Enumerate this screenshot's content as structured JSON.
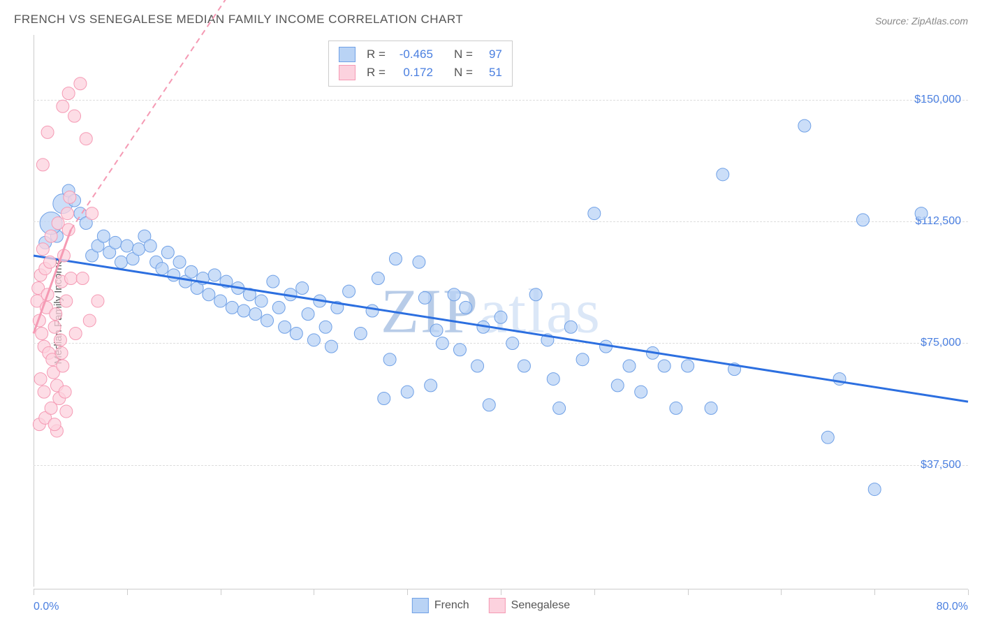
{
  "title": "FRENCH VS SENEGALESE MEDIAN FAMILY INCOME CORRELATION CHART",
  "source": "Source: ZipAtlas.com",
  "watermark_a": "ZIP",
  "watermark_b": "atlas",
  "chart": {
    "type": "scatter",
    "xlim": [
      0,
      80
    ],
    "ylim": [
      0,
      170000
    ],
    "x_start_label": "0.0%",
    "x_end_label": "80.0%",
    "x_tick_positions": [
      0,
      8,
      16,
      24,
      32,
      40,
      48,
      56,
      64,
      72,
      80
    ],
    "y_gridlines": [
      37500,
      75000,
      112500,
      150000
    ],
    "y_tick_labels": [
      "$37,500",
      "$75,000",
      "$112,500",
      "$150,000"
    ],
    "y_axis_title": "Median Family Income",
    "background_color": "#ffffff",
    "grid_color": "#dddddd",
    "axis_color": "#cccccc",
    "tick_label_color": "#4a7fe0",
    "series": [
      {
        "name": "French",
        "label": "French",
        "R": "-0.465",
        "N": "97",
        "point_fill": "#b9d3f5",
        "point_stroke": "#6fa0e6",
        "point_opacity": 0.75,
        "point_radius": 9,
        "trend_color": "#2c6fe0",
        "trend_from": [
          0,
          102000
        ],
        "trend_to": [
          80,
          57000
        ],
        "trend_dash": "none",
        "points": [
          [
            1,
            106000
          ],
          [
            2,
            108000
          ],
          [
            1.5,
            112000,
            16
          ],
          [
            2.5,
            118000,
            14
          ],
          [
            3,
            122000
          ],
          [
            3.5,
            119000
          ],
          [
            4,
            115000
          ],
          [
            4.5,
            112000
          ],
          [
            5,
            102000
          ],
          [
            5.5,
            105000
          ],
          [
            6,
            108000
          ],
          [
            6.5,
            103000
          ],
          [
            7,
            106000
          ],
          [
            7.5,
            100000
          ],
          [
            8,
            105000
          ],
          [
            8.5,
            101000
          ],
          [
            9,
            104000
          ],
          [
            9.5,
            108000
          ],
          [
            10,
            105000
          ],
          [
            10.5,
            100000
          ],
          [
            11,
            98000
          ],
          [
            11.5,
            103000
          ],
          [
            12,
            96000
          ],
          [
            12.5,
            100000
          ],
          [
            13,
            94000
          ],
          [
            13.5,
            97000
          ],
          [
            14,
            92000
          ],
          [
            14.5,
            95000
          ],
          [
            15,
            90000
          ],
          [
            15.5,
            96000
          ],
          [
            16,
            88000
          ],
          [
            16.5,
            94000
          ],
          [
            17,
            86000
          ],
          [
            17.5,
            92000
          ],
          [
            18,
            85000
          ],
          [
            18.5,
            90000
          ],
          [
            19,
            84000
          ],
          [
            19.5,
            88000
          ],
          [
            20,
            82000
          ],
          [
            20.5,
            94000
          ],
          [
            21,
            86000
          ],
          [
            21.5,
            80000
          ],
          [
            22,
            90000
          ],
          [
            22.5,
            78000
          ],
          [
            23,
            92000
          ],
          [
            23.5,
            84000
          ],
          [
            24,
            76000
          ],
          [
            24.5,
            88000
          ],
          [
            25,
            80000
          ],
          [
            25.5,
            74000
          ],
          [
            26,
            86000
          ],
          [
            27,
            91000
          ],
          [
            28,
            78000
          ],
          [
            29,
            85000
          ],
          [
            29.5,
            95000
          ],
          [
            30,
            58000
          ],
          [
            30.5,
            70000
          ],
          [
            31,
            101000
          ],
          [
            32,
            60000
          ],
          [
            33,
            100000
          ],
          [
            33.5,
            89000
          ],
          [
            34,
            62000
          ],
          [
            34.5,
            79000
          ],
          [
            35,
            75000
          ],
          [
            36,
            90000
          ],
          [
            36.5,
            73000
          ],
          [
            37,
            86000
          ],
          [
            38,
            68000
          ],
          [
            38.5,
            80000
          ],
          [
            39,
            56000
          ],
          [
            40,
            83000
          ],
          [
            41,
            75000
          ],
          [
            42,
            68000
          ],
          [
            43,
            90000
          ],
          [
            44,
            76000
          ],
          [
            44.5,
            64000
          ],
          [
            45,
            55000
          ],
          [
            46,
            80000
          ],
          [
            47,
            70000
          ],
          [
            48,
            115000
          ],
          [
            49,
            74000
          ],
          [
            50,
            62000
          ],
          [
            51,
            68000
          ],
          [
            52,
            60000
          ],
          [
            53,
            72000
          ],
          [
            54,
            68000
          ],
          [
            55,
            55000
          ],
          [
            56,
            68000
          ],
          [
            58,
            55000
          ],
          [
            59,
            127000
          ],
          [
            60,
            67000
          ],
          [
            66,
            142000
          ],
          [
            68,
            46000
          ],
          [
            69,
            64000
          ],
          [
            71,
            113000
          ],
          [
            72,
            30000
          ],
          [
            76,
            115000
          ]
        ]
      },
      {
        "name": "Senegalese",
        "label": "Senegalese",
        "R": "0.172",
        "N": "51",
        "point_fill": "#fcd2de",
        "point_stroke": "#f59ab4",
        "point_opacity": 0.75,
        "point_radius": 9,
        "trend_color": "#f59ab4",
        "trend_from": [
          0,
          78000
        ],
        "trend_to": [
          3.2,
          110000
        ],
        "trend_dash": "none",
        "trend2_from": [
          3.2,
          110000
        ],
        "trend2_to": [
          20,
          200000
        ],
        "trend2_dash": "8,6",
        "points": [
          [
            0.3,
            88000
          ],
          [
            0.4,
            92000
          ],
          [
            0.5,
            82000
          ],
          [
            0.6,
            96000
          ],
          [
            0.7,
            78000
          ],
          [
            0.8,
            104000
          ],
          [
            0.9,
            74000
          ],
          [
            1.0,
            98000
          ],
          [
            1.1,
            86000
          ],
          [
            1.2,
            90000
          ],
          [
            1.3,
            72000
          ],
          [
            1.4,
            100000
          ],
          [
            1.5,
            108000
          ],
          [
            1.6,
            70000
          ],
          [
            1.7,
            66000
          ],
          [
            1.8,
            80000
          ],
          [
            1.9,
            84000
          ],
          [
            2.0,
            62000
          ],
          [
            2.1,
            112000
          ],
          [
            2.2,
            58000
          ],
          [
            2.3,
            76000
          ],
          [
            2.4,
            94000
          ],
          [
            2.5,
            68000
          ],
          [
            2.6,
            102000
          ],
          [
            2.7,
            60000
          ],
          [
            2.8,
            88000
          ],
          [
            2.9,
            115000
          ],
          [
            3.0,
            110000
          ],
          [
            3.1,
            120000
          ],
          [
            3.2,
            95000
          ],
          [
            0.5,
            50000
          ],
          [
            1.0,
            52000
          ],
          [
            2.0,
            48000
          ],
          [
            1.5,
            55000
          ],
          [
            2.8,
            54000
          ],
          [
            1.2,
            140000
          ],
          [
            2.5,
            148000
          ],
          [
            3.0,
            152000
          ],
          [
            4.0,
            155000
          ],
          [
            3.5,
            145000
          ],
          [
            0.8,
            130000
          ],
          [
            4.5,
            138000
          ],
          [
            5.0,
            115000
          ],
          [
            4.2,
            95000
          ],
          [
            5.5,
            88000
          ],
          [
            0.6,
            64000
          ],
          [
            0.9,
            60000
          ],
          [
            1.8,
            50000
          ],
          [
            2.4,
            72000
          ],
          [
            3.6,
            78000
          ],
          [
            4.8,
            82000
          ]
        ]
      }
    ]
  },
  "footer_legend": [
    {
      "swatch_fill": "#b9d3f5",
      "swatch_border": "#6fa0e6",
      "label": "French"
    },
    {
      "swatch_fill": "#fcd2de",
      "swatch_border": "#f59ab4",
      "label": "Senegalese"
    }
  ]
}
